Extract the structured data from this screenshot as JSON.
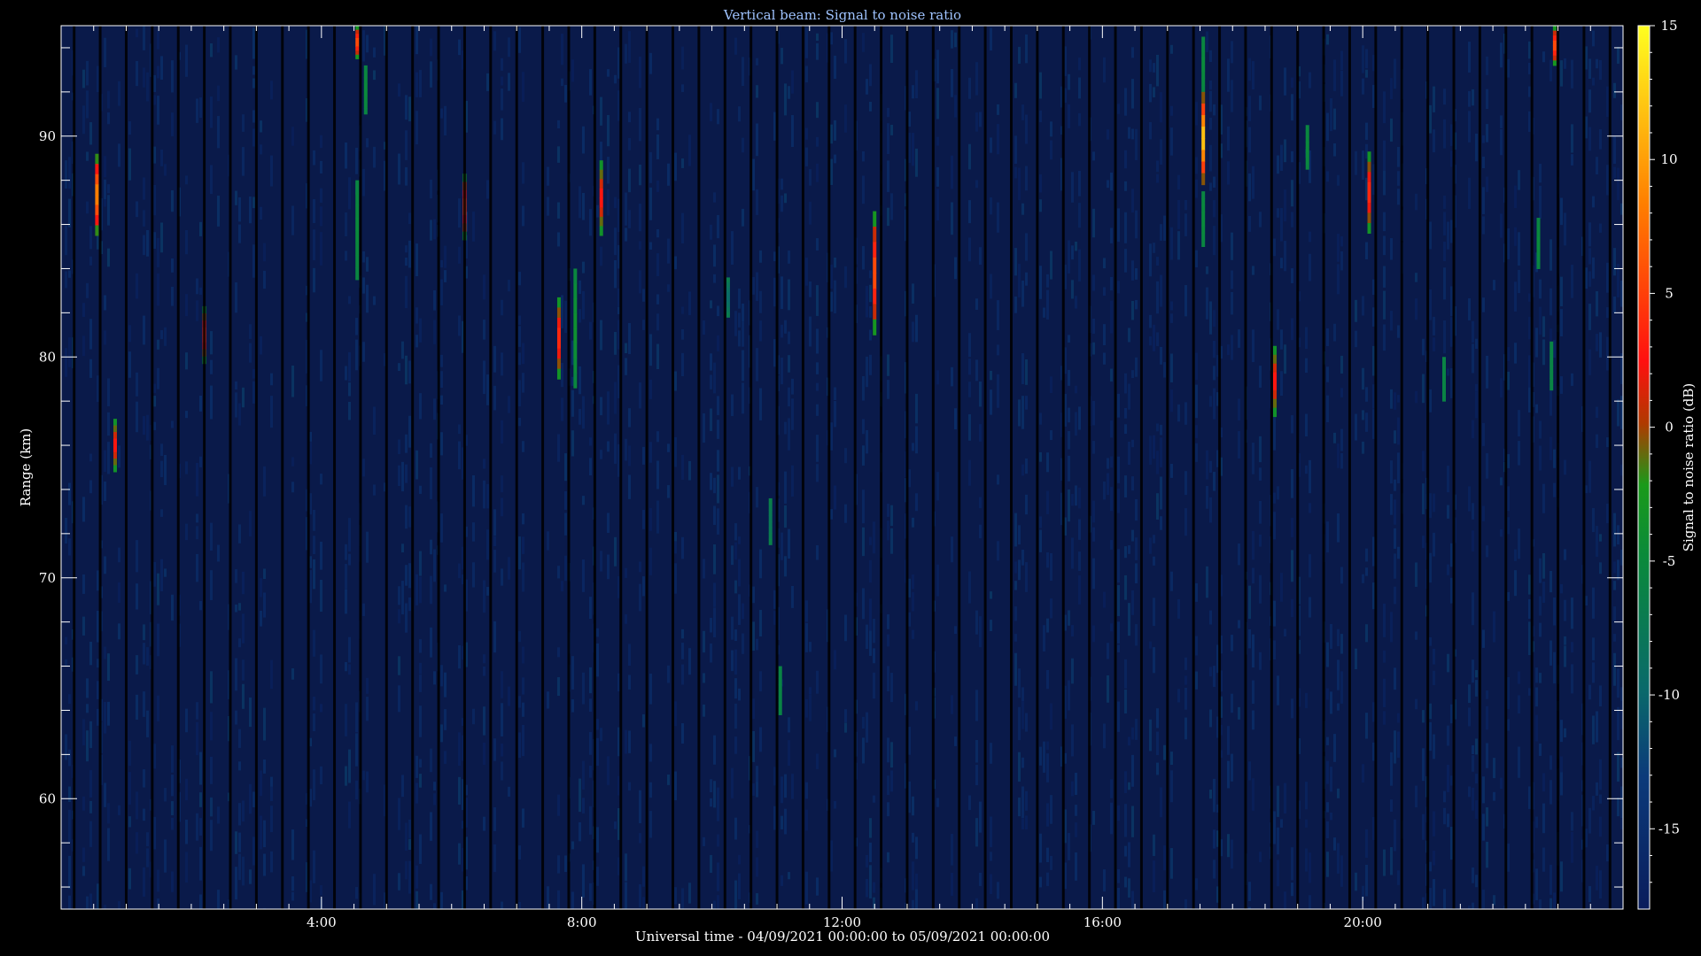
{
  "colors": {
    "background": "#000000",
    "plot_bg": "#0a1a4a",
    "axis": "#ffffff",
    "title": "#9fc3ff"
  },
  "chart_data": {
    "type": "heatmap",
    "title": "Vertical beam: Signal to noise ratio",
    "xlabel": "Universal time - 04/09/2021 00:00:00 to 05/09/2021 00:00:00",
    "ylabel": "Range (km)",
    "colorbar_label": "Signal to noise ratio (dB)",
    "x_unit": "hours UT",
    "xlim": [
      0,
      24
    ],
    "ylim": [
      55,
      95
    ],
    "clim": [
      -18,
      15
    ],
    "x_ticks": [
      {
        "value": 4,
        "label": "4:00"
      },
      {
        "value": 8,
        "label": "8:00"
      },
      {
        "value": 12,
        "label": "12:00"
      },
      {
        "value": 16,
        "label": "16:00"
      },
      {
        "value": 20,
        "label": "20:00"
      }
    ],
    "y_ticks": [
      {
        "value": 60,
        "label": "60"
      },
      {
        "value": 70,
        "label": "70"
      },
      {
        "value": 80,
        "label": "80"
      },
      {
        "value": 90,
        "label": "90"
      }
    ],
    "colorbar_ticks": [
      {
        "value": 15,
        "label": "15"
      },
      {
        "value": 10,
        "label": "10"
      },
      {
        "value": 5,
        "label": "5"
      },
      {
        "value": 0,
        "label": "0"
      },
      {
        "value": -5,
        "label": "-5"
      },
      {
        "value": -10,
        "label": "-10"
      },
      {
        "value": -15,
        "label": "-15"
      }
    ],
    "colorscale": [
      "#0a1d5c",
      "#0b4a8a",
      "#0a8a6a",
      "#1a9a1a",
      "#b03a00",
      "#ff1010",
      "#ff8000",
      "#ffff20"
    ],
    "background_level_db": -16,
    "echoes": [
      {
        "t": 0.55,
        "r0": 85.5,
        "r1": 89.2,
        "peak": 9
      },
      {
        "t": 0.83,
        "r0": 74.8,
        "r1": 77.2,
        "peak": 3
      },
      {
        "t": 2.2,
        "r0": 79.7,
        "r1": 82.3,
        "peak": 4
      },
      {
        "t": 4.55,
        "r0": 93.5,
        "r1": 95.0,
        "peak": 6
      },
      {
        "t": 4.68,
        "r0": 91.0,
        "r1": 93.2,
        "peak": -5
      },
      {
        "t": 4.55,
        "r0": 83.5,
        "r1": 88.0,
        "peak": -5
      },
      {
        "t": 6.2,
        "r0": 85.3,
        "r1": 88.3,
        "peak": 5
      },
      {
        "t": 7.65,
        "r0": 79.0,
        "r1": 82.7,
        "peak": 4
      },
      {
        "t": 7.9,
        "r0": 78.6,
        "r1": 84.0,
        "peak": -4
      },
      {
        "t": 8.3,
        "r0": 85.5,
        "r1": 88.9,
        "peak": 3
      },
      {
        "t": 10.25,
        "r0": 81.8,
        "r1": 83.6,
        "peak": -10
      },
      {
        "t": 10.9,
        "r0": 71.5,
        "r1": 73.6,
        "peak": -8
      },
      {
        "t": 11.05,
        "r0": 63.8,
        "r1": 66.0,
        "peak": -6
      },
      {
        "t": 12.5,
        "r0": 81.0,
        "r1": 86.6,
        "peak": 6
      },
      {
        "t": 17.55,
        "r0": 92.0,
        "r1": 94.5,
        "peak": -5
      },
      {
        "t": 17.55,
        "r0": 87.8,
        "r1": 92.0,
        "peak": 13
      },
      {
        "t": 17.55,
        "r0": 85.0,
        "r1": 87.5,
        "peak": -5
      },
      {
        "t": 18.65,
        "r0": 77.3,
        "r1": 80.5,
        "peak": 3
      },
      {
        "t": 19.15,
        "r0": 88.5,
        "r1": 90.5,
        "peak": -5
      },
      {
        "t": 20.1,
        "r0": 85.6,
        "r1": 89.3,
        "peak": 4
      },
      {
        "t": 21.25,
        "r0": 78.0,
        "r1": 80.0,
        "peak": -6
      },
      {
        "t": 22.7,
        "r0": 84.0,
        "r1": 86.3,
        "peak": -5
      },
      {
        "t": 22.95,
        "r0": 93.2,
        "r1": 95.0,
        "peak": 6
      },
      {
        "t": 22.9,
        "r0": 78.5,
        "r1": 80.7,
        "peak": -6
      }
    ]
  }
}
